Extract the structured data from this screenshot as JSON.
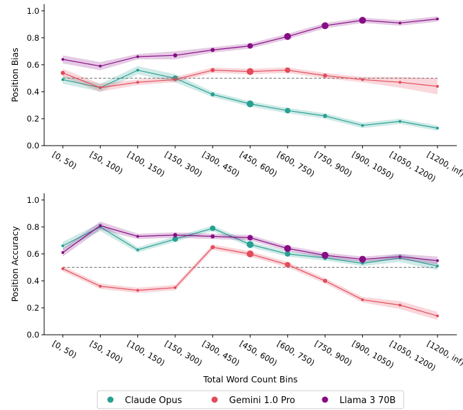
{
  "colors": {
    "claude": "#26a092",
    "gemini": "#e34a5a",
    "llama": "#870d85",
    "reference": "#888888"
  },
  "legend": {
    "items": [
      "Claude Opus",
      "Gemini 1.0 Pro",
      "Llama 3 70B"
    ]
  },
  "xlabel": "Total Word Count Bins",
  "chart_data": [
    {
      "type": "line",
      "ylabel": "Position Bias",
      "ylim": [
        0.0,
        1.05
      ],
      "yticks": [
        "0.0",
        "0.2",
        "0.4",
        "0.6",
        "0.8",
        "1.0"
      ],
      "reference_line": 0.5,
      "categories": [
        "[0, 50)",
        "[50, 100)",
        "[100, 150)",
        "[150, 300)",
        "[300, 450)",
        "[450, 600)",
        "[600, 750)",
        "[750, 900)",
        "[900, 1050)",
        "[1050, 1200)",
        "[1200, inf)"
      ],
      "series": [
        {
          "name": "Claude Opus",
          "values": [
            0.49,
            0.43,
            0.56,
            0.5,
            0.38,
            0.31,
            0.26,
            0.22,
            0.15,
            0.18,
            0.13
          ],
          "band": [
            0.03,
            0.03,
            0.03,
            0.03,
            0.02,
            0.02,
            0.02,
            0.02,
            0.02,
            0.02,
            0.02
          ],
          "marker_size": [
            2,
            2,
            2,
            4,
            3,
            5,
            4,
            3,
            2,
            2,
            2
          ]
        },
        {
          "name": "Gemini 1.0 Pro",
          "values": [
            0.54,
            0.43,
            0.47,
            0.49,
            0.56,
            0.55,
            0.56,
            0.52,
            0.49,
            0.47,
            0.44
          ],
          "band": [
            0.03,
            0.03,
            0.02,
            0.02,
            0.02,
            0.02,
            0.02,
            0.02,
            0.02,
            0.04,
            0.06
          ],
          "marker_size": [
            3,
            2,
            2,
            2,
            3,
            5,
            4,
            3,
            2,
            2,
            2
          ]
        },
        {
          "name": "Llama 3 70B",
          "values": [
            0.64,
            0.59,
            0.66,
            0.67,
            0.71,
            0.74,
            0.81,
            0.89,
            0.93,
            0.91,
            0.94
          ],
          "band": [
            0.03,
            0.03,
            0.02,
            0.03,
            0.02,
            0.02,
            0.02,
            0.02,
            0.02,
            0.02,
            0.02
          ],
          "marker_size": [
            2,
            2,
            2,
            3,
            3,
            4,
            5,
            5,
            5,
            2,
            2
          ]
        }
      ]
    },
    {
      "type": "line",
      "ylabel": "Position Accuracy",
      "ylim": [
        0.0,
        1.05
      ],
      "yticks": [
        "0.0",
        "0.2",
        "0.4",
        "0.6",
        "0.8",
        "1.0"
      ],
      "reference_line": 0.5,
      "categories": [
        "[0, 50)",
        "[50, 100)",
        "[100, 150)",
        "[150, 300)",
        "[300, 450)",
        "[450, 600)",
        "[600, 750)",
        "[750, 900)",
        "[900, 1050)",
        "[1050, 1200)",
        "[1200, inf)"
      ],
      "series": [
        {
          "name": "Claude Opus",
          "values": [
            0.66,
            0.8,
            0.63,
            0.71,
            0.79,
            0.67,
            0.6,
            0.57,
            0.53,
            0.57,
            0.51
          ],
          "band": [
            0.03,
            0.03,
            0.02,
            0.02,
            0.02,
            0.02,
            0.02,
            0.02,
            0.02,
            0.03,
            0.03
          ],
          "marker_size": [
            2,
            2,
            2,
            4,
            4,
            5,
            4,
            3,
            2,
            2,
            2
          ]
        },
        {
          "name": "Gemini 1.0 Pro",
          "values": [
            0.49,
            0.36,
            0.33,
            0.35,
            0.65,
            0.6,
            0.52,
            0.4,
            0.26,
            0.22,
            0.14
          ],
          "band": [
            0.02,
            0.02,
            0.02,
            0.02,
            0.02,
            0.02,
            0.02,
            0.02,
            0.02,
            0.03,
            0.03
          ],
          "marker_size": [
            2,
            2,
            2,
            2,
            3,
            5,
            4,
            3,
            2,
            2,
            2
          ]
        },
        {
          "name": "Llama 3 70B",
          "values": [
            0.61,
            0.81,
            0.73,
            0.74,
            0.73,
            0.72,
            0.64,
            0.59,
            0.56,
            0.58,
            0.55
          ],
          "band": [
            0.03,
            0.03,
            0.02,
            0.02,
            0.02,
            0.02,
            0.02,
            0.02,
            0.02,
            0.02,
            0.03
          ],
          "marker_size": [
            2,
            2,
            2,
            3,
            3,
            4,
            5,
            5,
            5,
            2,
            2
          ]
        }
      ]
    }
  ]
}
